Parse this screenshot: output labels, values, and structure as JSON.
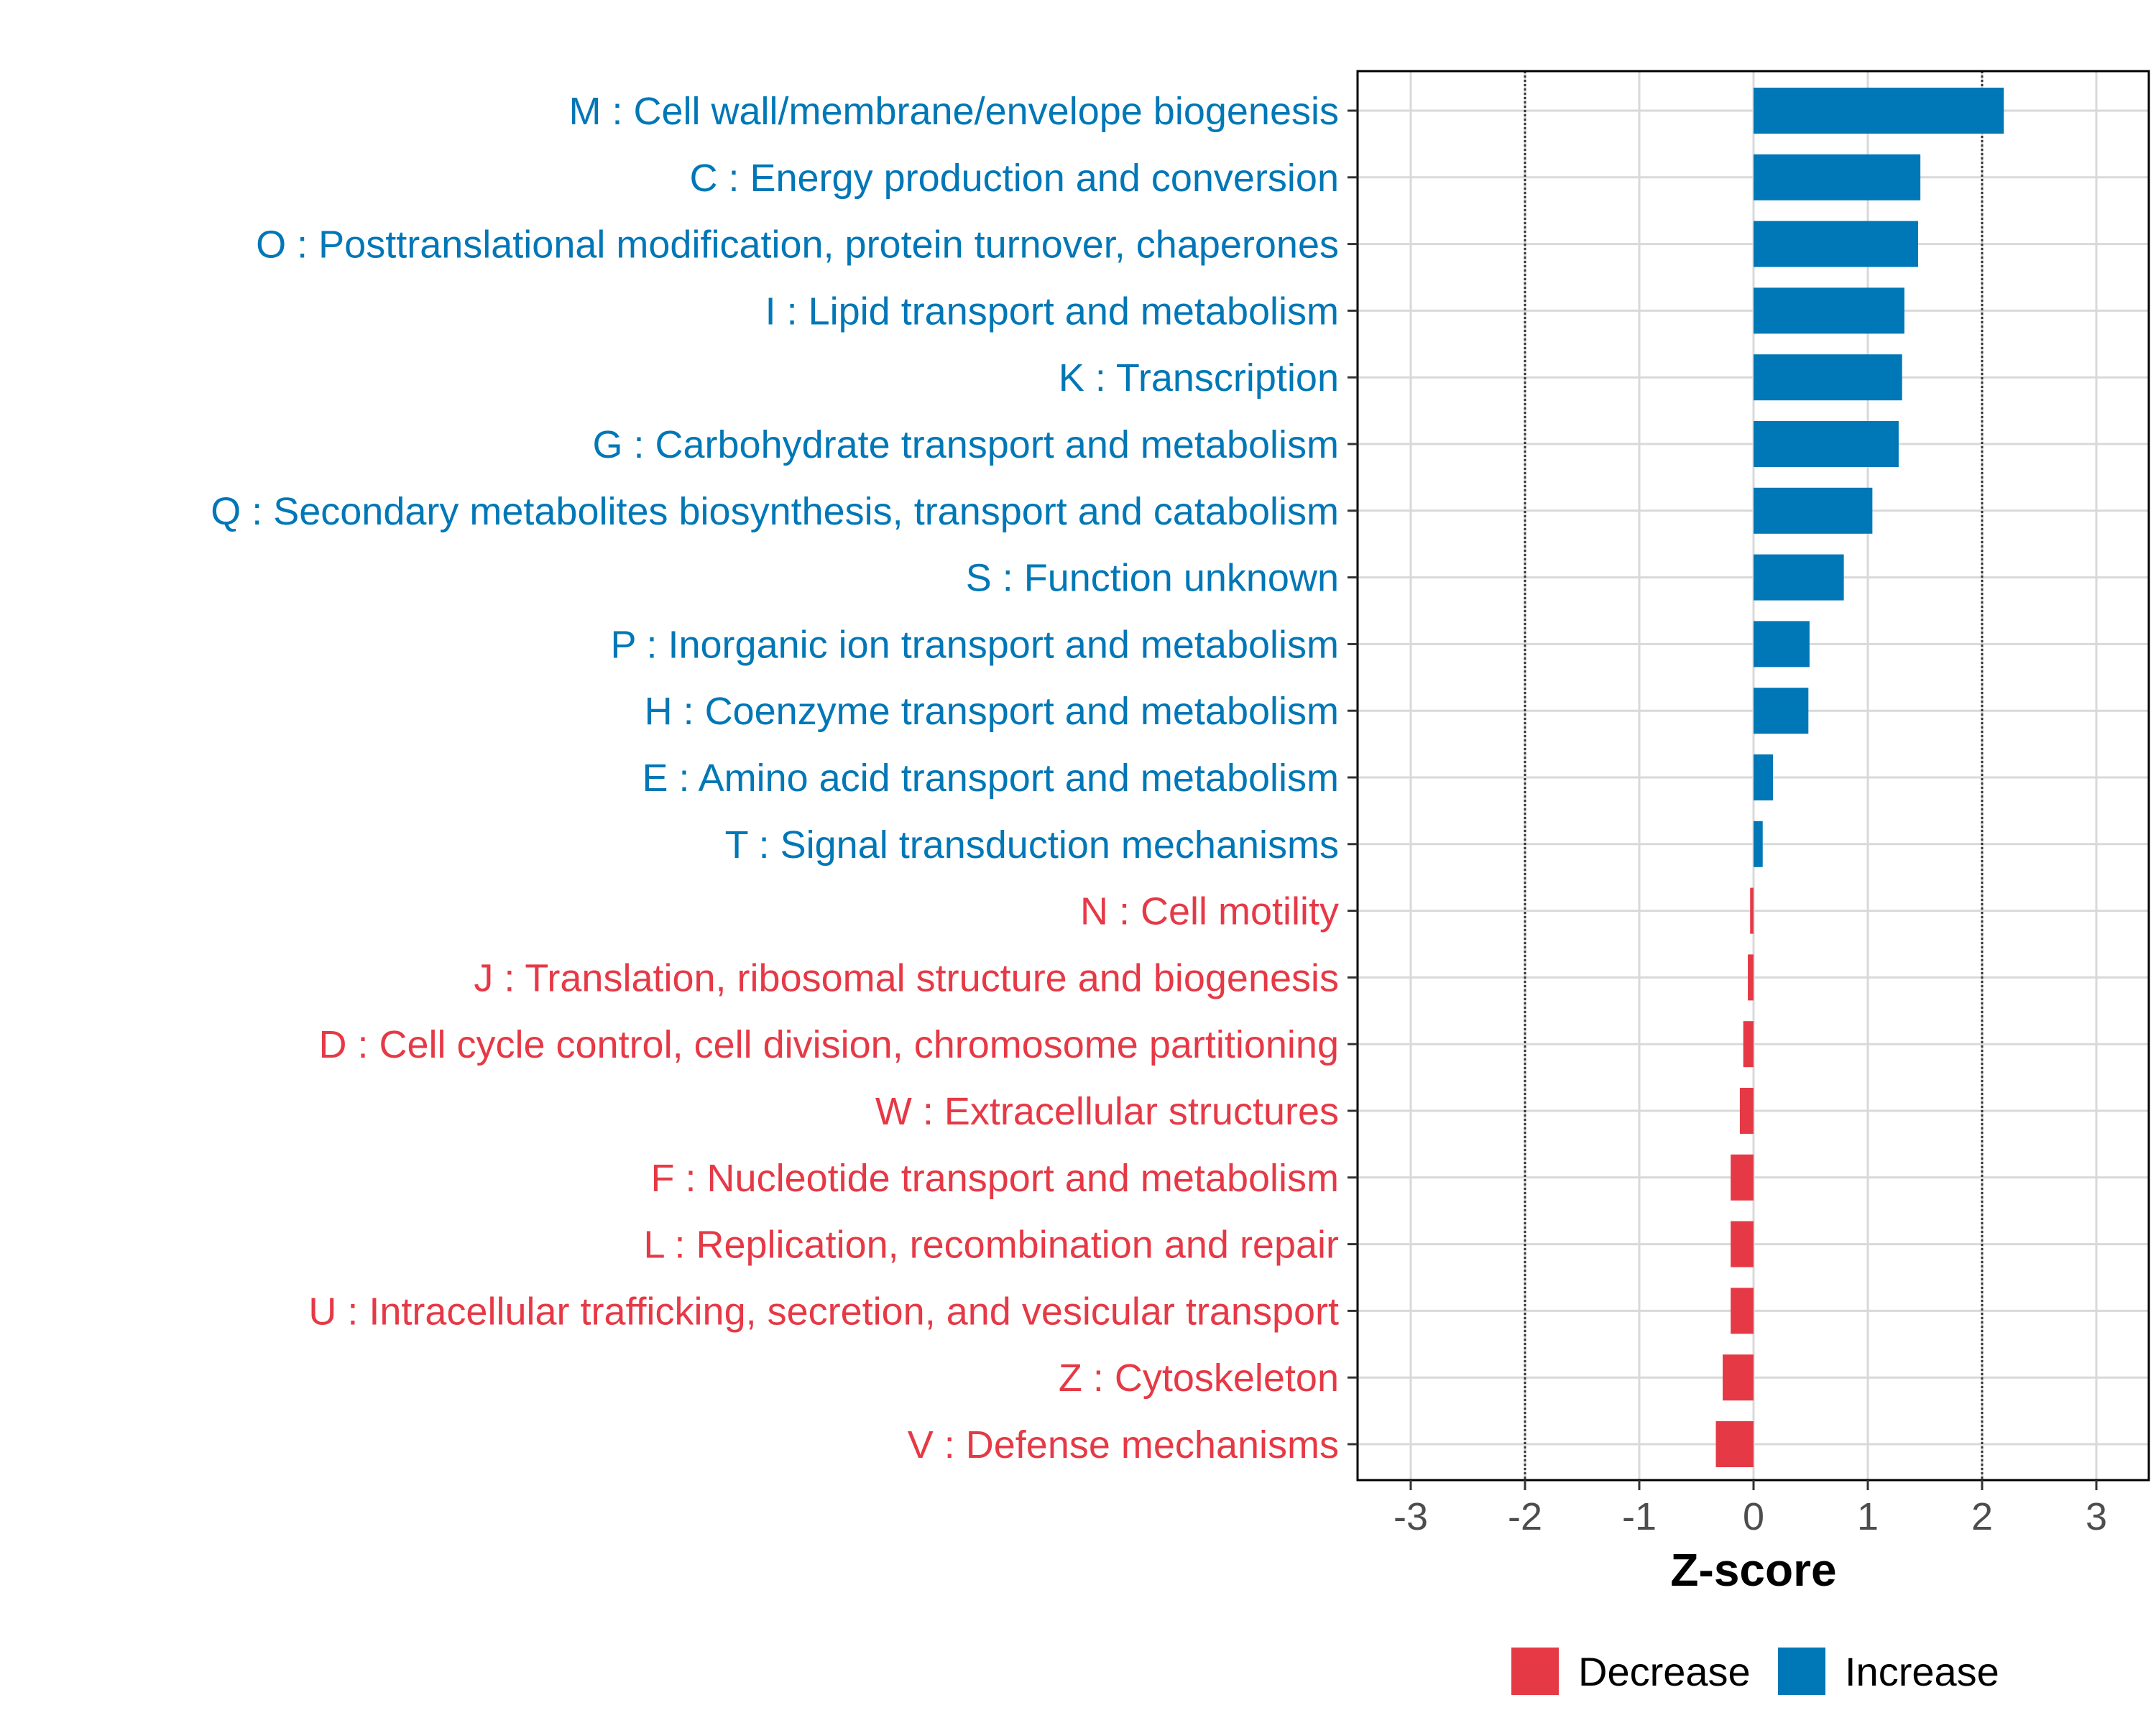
{
  "chart_data": {
    "type": "bar",
    "orientation": "horizontal",
    "xlabel": "Z-score",
    "ylabel": "",
    "xlim": [
      -3.5,
      3.5
    ],
    "xticks": [
      -3,
      -2,
      -1,
      0,
      1,
      2,
      3
    ],
    "xtick_labels": [
      "-3",
      "-2",
      "-1",
      "0",
      "1",
      "2",
      "3"
    ],
    "reference_lines": [
      -2,
      2
    ],
    "grid": true,
    "legend_position": "bottom",
    "colors": {
      "Increase": "#0077b6",
      "Decrease": "#e63946"
    },
    "legend": [
      {
        "name": "Decrease",
        "color": "#e63946"
      },
      {
        "name": "Increase",
        "color": "#0077b6"
      }
    ],
    "categories": [
      "M : Cell wall/membrane/envelope biogenesis",
      "C : Energy production and conversion",
      "O : Posttranslational modification, protein turnover, chaperones",
      "I : Lipid transport and metabolism",
      "K : Transcription",
      "G : Carbohydrate transport and metabolism",
      "Q : Secondary metabolites biosynthesis, transport and catabolism",
      "S : Function unknown",
      "P : Inorganic ion transport and metabolism",
      "H : Coenzyme transport and metabolism",
      "E : Amino acid transport and metabolism",
      "T : Signal transduction mechanisms",
      "N : Cell motility",
      "J : Translation, ribosomal structure and biogenesis",
      "D : Cell cycle control, cell division, chromosome partitioning",
      "W : Extracellular structures",
      "F : Nucleotide transport and metabolism",
      "L : Replication, recombination and repair",
      "U : Intracellular trafficking, secretion, and vesicular transport",
      "Z : Cytoskeleton",
      "V : Defense mechanisms"
    ],
    "values": [
      2.19,
      1.46,
      1.44,
      1.32,
      1.3,
      1.27,
      1.04,
      0.79,
      0.49,
      0.48,
      0.17,
      0.08,
      -0.03,
      -0.05,
      -0.09,
      -0.12,
      -0.2,
      -0.2,
      -0.2,
      -0.27,
      -0.33
    ],
    "direction": [
      "Increase",
      "Increase",
      "Increase",
      "Increase",
      "Increase",
      "Increase",
      "Increase",
      "Increase",
      "Increase",
      "Increase",
      "Increase",
      "Increase",
      "Decrease",
      "Decrease",
      "Decrease",
      "Decrease",
      "Decrease",
      "Decrease",
      "Decrease",
      "Decrease",
      "Decrease"
    ]
  }
}
